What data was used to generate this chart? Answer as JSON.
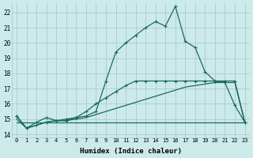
{
  "xlabel": "Humidex (Indice chaleur)",
  "bg_color": "#cceaea",
  "grid_color": "#aacccc",
  "line_color": "#1a6b5a",
  "xlim": [
    -0.5,
    23.5
  ],
  "ylim": [
    13.8,
    22.6
  ],
  "xticks": [
    0,
    1,
    2,
    3,
    4,
    5,
    6,
    7,
    8,
    9,
    10,
    11,
    12,
    13,
    14,
    15,
    16,
    17,
    18,
    19,
    20,
    21,
    22,
    23
  ],
  "yticks": [
    14,
    15,
    16,
    17,
    18,
    19,
    20,
    21,
    22
  ],
  "series_flat_x": [
    0,
    1,
    2,
    3,
    4,
    5,
    6,
    7,
    8,
    9,
    10,
    11,
    12,
    13,
    14,
    15,
    16,
    17,
    18,
    19,
    20,
    21,
    22,
    23
  ],
  "series_flat_y": [
    14.8,
    14.8,
    14.8,
    14.8,
    14.8,
    14.8,
    14.8,
    14.8,
    14.8,
    14.8,
    14.8,
    14.8,
    14.8,
    14.8,
    14.8,
    14.8,
    14.8,
    14.8,
    14.8,
    14.8,
    14.8,
    14.8,
    14.8,
    14.8
  ],
  "series_zigzag_x": [
    0,
    1,
    2,
    3,
    4,
    5,
    6,
    7,
    8,
    9,
    10,
    11,
    12,
    13,
    14,
    15,
    16,
    17,
    18,
    19,
    20,
    21,
    22,
    23
  ],
  "series_zigzag_y": [
    15.2,
    14.4,
    14.8,
    15.1,
    14.9,
    14.9,
    15.1,
    15.5,
    16.0,
    16.4,
    16.8,
    17.2,
    17.5,
    17.5,
    17.5,
    17.5,
    17.5,
    17.5,
    17.5,
    17.5,
    17.5,
    17.5,
    17.5,
    14.8
  ],
  "series_diag_x": [
    0,
    1,
    2,
    3,
    4,
    5,
    6,
    7,
    8,
    9,
    10,
    11,
    12,
    13,
    14,
    15,
    16,
    17,
    18,
    19,
    20,
    21,
    22,
    23
  ],
  "series_diag_y": [
    15.0,
    14.4,
    14.6,
    14.8,
    14.9,
    14.9,
    15.0,
    15.1,
    15.3,
    15.5,
    15.7,
    15.9,
    16.1,
    16.3,
    16.5,
    16.7,
    16.9,
    17.1,
    17.2,
    17.3,
    17.4,
    17.4,
    17.4,
    14.8
  ],
  "series_main_x": [
    0,
    1,
    2,
    3,
    4,
    5,
    6,
    7,
    8,
    9,
    10,
    11,
    12,
    13,
    14,
    15,
    16,
    17,
    18,
    19,
    20,
    21,
    22,
    23
  ],
  "series_main_y": [
    15.2,
    14.4,
    14.6,
    14.8,
    14.9,
    15.0,
    15.1,
    15.2,
    15.5,
    17.5,
    19.4,
    20.0,
    20.5,
    21.0,
    21.4,
    21.1,
    22.4,
    20.1,
    19.7,
    18.1,
    17.5,
    17.4,
    15.9,
    14.8
  ]
}
